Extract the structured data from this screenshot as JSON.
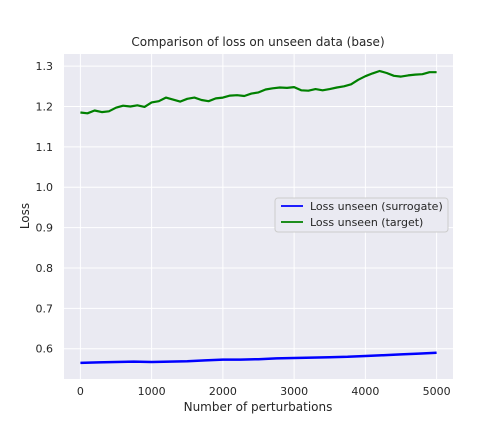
{
  "chart_data": {
    "type": "line",
    "title": "Comparison of loss on unseen data (base)",
    "xlabel": "Number of perturbations",
    "ylabel": "Loss",
    "xlim": [
      -230,
      5230
    ],
    "ylim": [
      0.525,
      1.33
    ],
    "xticks": [
      0,
      1000,
      2000,
      3000,
      4000,
      5000
    ],
    "xtick_labels": [
      "0",
      "1000",
      "2000",
      "3000",
      "4000",
      "5000"
    ],
    "yticks": [
      0.6,
      0.7,
      0.8,
      0.9,
      1.0,
      1.1,
      1.2,
      1.3
    ],
    "ytick_labels": [
      "0.6",
      "0.7",
      "0.8",
      "0.9",
      "1.0",
      "1.1",
      "1.2",
      "1.3"
    ],
    "grid": true,
    "background": "#eaeaf2",
    "legend_position": "center-right",
    "series": [
      {
        "name": "Loss unseen (surrogate)",
        "color": "#0000ff",
        "x": [
          0,
          250,
          500,
          750,
          1000,
          1250,
          1500,
          1750,
          2000,
          2250,
          2500,
          2750,
          3000,
          3250,
          3500,
          3750,
          4000,
          4250,
          4500,
          4750,
          5000
        ],
        "y": [
          0.565,
          0.566,
          0.567,
          0.568,
          0.567,
          0.568,
          0.569,
          0.571,
          0.573,
          0.573,
          0.574,
          0.576,
          0.577,
          0.578,
          0.579,
          0.58,
          0.582,
          0.584,
          0.586,
          0.588,
          0.59
        ]
      },
      {
        "name": "Loss unseen (target)",
        "color": "#008000",
        "x": [
          0,
          100,
          200,
          300,
          400,
          500,
          600,
          700,
          800,
          900,
          1000,
          1100,
          1200,
          1300,
          1400,
          1500,
          1600,
          1700,
          1800,
          1900,
          2000,
          2100,
          2200,
          2300,
          2400,
          2500,
          2600,
          2700,
          2800,
          2900,
          3000,
          3100,
          3200,
          3300,
          3400,
          3500,
          3600,
          3700,
          3800,
          3900,
          4000,
          4100,
          4200,
          4300,
          4400,
          4500,
          4600,
          4700,
          4800,
          4900,
          5000
        ],
        "y": [
          1.185,
          1.183,
          1.19,
          1.186,
          1.188,
          1.197,
          1.202,
          1.2,
          1.203,
          1.199,
          1.21,
          1.213,
          1.222,
          1.217,
          1.212,
          1.219,
          1.222,
          1.216,
          1.213,
          1.22,
          1.222,
          1.227,
          1.228,
          1.226,
          1.232,
          1.235,
          1.242,
          1.245,
          1.247,
          1.246,
          1.248,
          1.24,
          1.239,
          1.243,
          1.24,
          1.243,
          1.247,
          1.25,
          1.255,
          1.266,
          1.275,
          1.282,
          1.288,
          1.283,
          1.276,
          1.274,
          1.277,
          1.279,
          1.28,
          1.285,
          1.285
        ]
      }
    ]
  }
}
